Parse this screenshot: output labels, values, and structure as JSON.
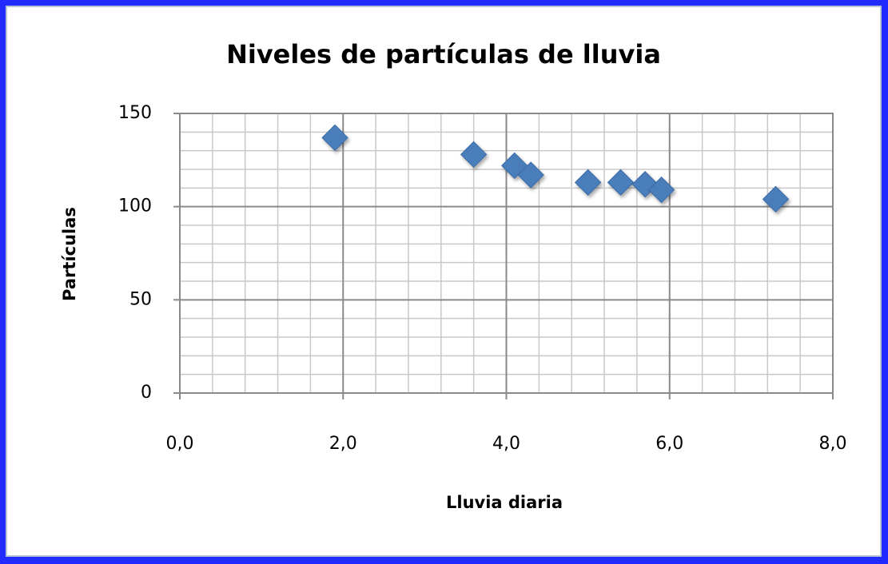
{
  "chart_data": {
    "type": "scatter",
    "title": "Niveles de partículas de lluvia",
    "x_label": "Lluvia diaria",
    "y_label": "Partículas",
    "series": [
      {
        "name": "Partículas",
        "color": "#4a7ebb",
        "x": [
          1.9,
          3.6,
          4.1,
          4.3,
          5.0,
          5.4,
          5.7,
          5.9,
          7.3
        ],
        "values": [
          137,
          128,
          122,
          117,
          113,
          113,
          112,
          109,
          104
        ]
      }
    ],
    "xlim": [
      0,
      8
    ],
    "xticks": [
      {
        "value": 0,
        "label": "0,0"
      },
      {
        "value": 2,
        "label": "2,0"
      },
      {
        "value": 4,
        "label": "4,0"
      },
      {
        "value": 6,
        "label": "6,0"
      },
      {
        "value": 8,
        "label": "8,0"
      }
    ],
    "ylim": [
      0,
      150
    ],
    "yticks": [
      0,
      50,
      100,
      150
    ],
    "grid": true,
    "minor_grid": true
  }
}
